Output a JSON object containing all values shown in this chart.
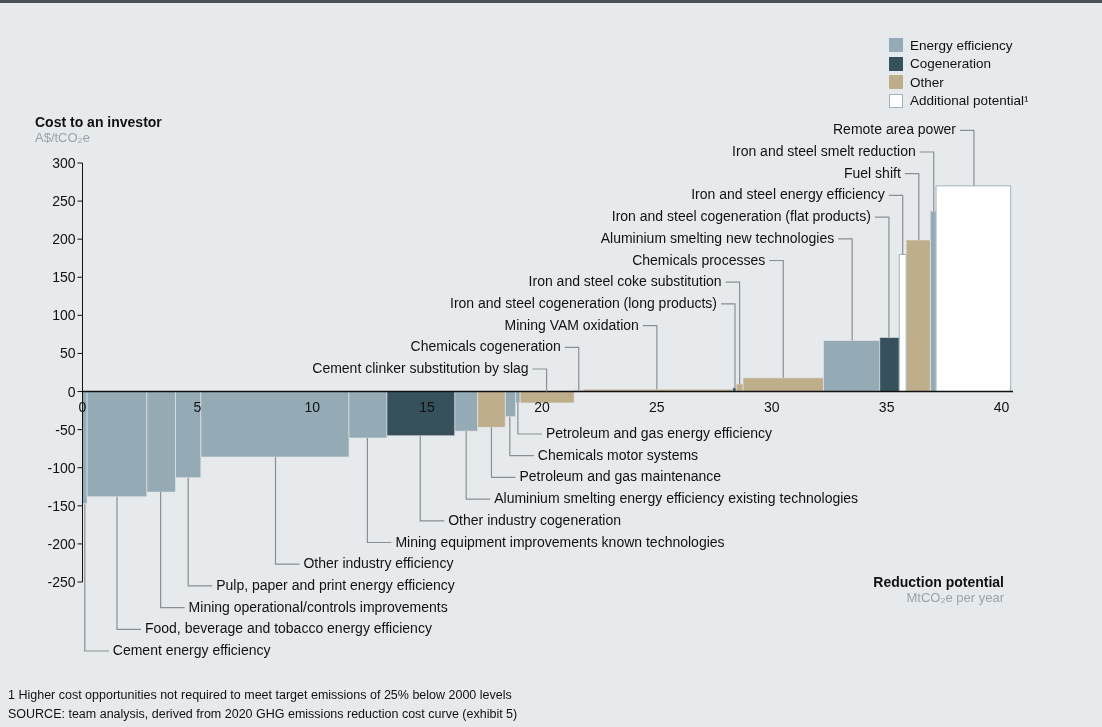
{
  "chart_data": {
    "type": "histogram",
    "ylabel": "Cost to an investor\nA$/tCO₂e",
    "xlabel": "Reduction potential\nMtCO₂e per year",
    "bins": [
      0,
      0.2,
      2.8,
      4.05,
      5.15,
      11.6,
      13.25,
      16.2,
      17.2,
      18.4,
      18.85,
      19.05,
      21.4,
      21.8,
      28.3,
      28.45,
      28.75,
      32.25,
      34.7,
      35.55,
      35.85,
      36.9,
      37.15,
      40.4
    ],
    "series": [
      {
        "name": "Energy efficiency",
        "color": "#94abb6",
        "values": [
          -147,
          -138,
          -132,
          -113,
          -86,
          -61,
          null,
          -52,
          null,
          -33,
          -15,
          null,
          null,
          null,
          null,
          null,
          null,
          67,
          null,
          null,
          null,
          237,
          null
        ]
      },
      {
        "name": "Cogeneration",
        "color": "#36515c",
        "values": [
          null,
          null,
          null,
          null,
          null,
          null,
          -58,
          null,
          null,
          null,
          null,
          null,
          1,
          null,
          5,
          null,
          null,
          null,
          71,
          null,
          null,
          null,
          null
        ]
      },
      {
        "name": "Other",
        "color": "#bfae8c",
        "values": [
          null,
          null,
          null,
          null,
          null,
          null,
          null,
          null,
          -47,
          null,
          null,
          -15,
          null,
          3,
          null,
          10,
          18,
          null,
          null,
          null,
          199,
          null,
          null
        ]
      },
      {
        "name": "Additional potential¹",
        "color": "#ffffff",
        "values": [
          null,
          null,
          null,
          null,
          null,
          null,
          null,
          null,
          null,
          null,
          null,
          null,
          null,
          null,
          null,
          null,
          null,
          null,
          null,
          180,
          null,
          null,
          270
        ]
      }
    ],
    "xlim": [
      0,
      40.5
    ],
    "xticks": [
      0,
      5,
      10,
      15,
      20,
      25,
      30,
      35,
      40
    ],
    "ylim": [
      -250,
      300
    ],
    "yticks": [
      -250,
      -200,
      -150,
      -100,
      -50,
      0,
      50,
      100,
      150,
      200,
      250,
      300
    ],
    "legend": "top right",
    "annotations": [
      {
        "text": "Cement energy efficiency",
        "x": 0.1,
        "y": -147
      },
      {
        "text": "Food, beverage and tobacco energy efficiency",
        "x": 1.5,
        "y": -138
      },
      {
        "text": "Mining operational/controls improvements",
        "x": 3.4,
        "y": -132
      },
      {
        "text": "Pulp, paper and print energy efficiency",
        "x": 4.6,
        "y": -113
      },
      {
        "text": "Other industry efficiency",
        "x": 8.4,
        "y": -86
      },
      {
        "text": "Mining equipment improvements known technologies",
        "x": 12.4,
        "y": -61
      },
      {
        "text": "Other industry cogeneration",
        "x": 14.7,
        "y": -58
      },
      {
        "text": "Aluminium smelting energy efficiency existing technologies",
        "x": 16.7,
        "y": -52
      },
      {
        "text": "Petroleum and gas maintenance",
        "x": 17.8,
        "y": -47
      },
      {
        "text": "Chemicals motor systems",
        "x": 18.6,
        "y": -33
      },
      {
        "text": "Petroleum and gas energy efficiency",
        "x": 18.95,
        "y": -15
      },
      {
        "text": "Cement clinker substitution by slag",
        "x": 20.2,
        "y": -15
      },
      {
        "text": "Chemicals cogeneration",
        "x": 21.6,
        "y": 1
      },
      {
        "text": "Mining VAM oxidation",
        "x": 25,
        "y": 3
      },
      {
        "text": "Iron and steel cogeneration (long products)",
        "x": 28.4,
        "y": 5
      },
      {
        "text": "Iron and steel coke substitution",
        "x": 28.6,
        "y": 10
      },
      {
        "text": "Chemicals processes",
        "x": 30.5,
        "y": 18
      },
      {
        "text": "Aluminium smelting new technologies",
        "x": 33.5,
        "y": 67
      },
      {
        "text": "Iron and steel cogeneration (flat products)",
        "x": 35.1,
        "y": 71
      },
      {
        "text": "Iron and steel energy efficiency",
        "x": 35.7,
        "y": 180
      },
      {
        "text": "Fuel shift",
        "x": 36.4,
        "y": 199
      },
      {
        "text": "Iron and steel smelt reduction",
        "x": 37.05,
        "y": 237
      },
      {
        "text": "Remote area power",
        "x": 38.8,
        "y": 270
      },
      "1 Higher cost opportunities not required to meet target emissions of 25% below 2000 levels",
      "SOURCE: team analysis, derived from 2020 GHG emissions reduction cost curve (exhibit 5)"
    ]
  }
}
